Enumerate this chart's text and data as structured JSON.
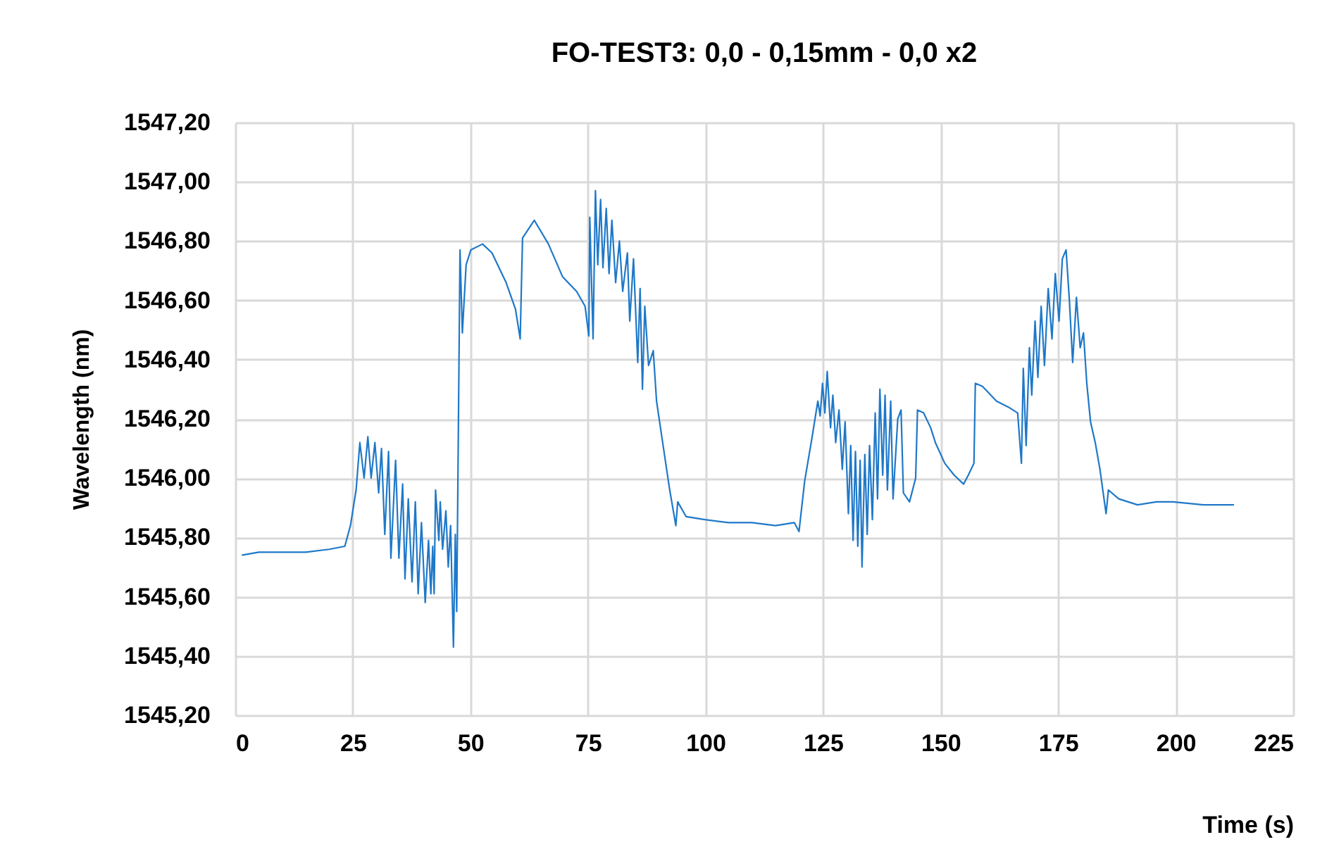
{
  "chart_data": {
    "type": "line",
    "title": "FO-TEST3: 0,0 - 0,15mm - 0,0  x2",
    "xlabel": "Time (s)",
    "ylabel": "Wavelength (nm)",
    "xlim": [
      0,
      225
    ],
    "xticks": [
      0,
      25,
      50,
      75,
      100,
      125,
      150,
      175,
      200,
      225
    ],
    "ylim": [
      1545.2,
      1547.2
    ],
    "yticks": [
      {
        "value": 1545.2,
        "label": "1545,20"
      },
      {
        "value": 1545.4,
        "label": "1545,40"
      },
      {
        "value": 1545.6,
        "label": "1545,60"
      },
      {
        "value": 1545.8,
        "label": "1545,80"
      },
      {
        "value": 1546.0,
        "label": "1546,00"
      },
      {
        "value": 1546.2,
        "label": "1546,20"
      },
      {
        "value": 1546.4,
        "label": "1546,40"
      },
      {
        "value": 1546.6,
        "label": "1546,60"
      },
      {
        "value": 1546.8,
        "label": "1546,80"
      },
      {
        "value": 1547.0,
        "label": "1547,00"
      },
      {
        "value": 1547.2,
        "label": "1547,20"
      }
    ],
    "grid": true,
    "series": [
      {
        "color": "#1f78c8",
        "x": [
          1.4,
          5,
          10,
          15,
          20,
          23.3,
          24.5,
          25.7,
          26.5,
          27.4,
          28.2,
          28.9,
          29.7,
          30.5,
          31.1,
          31.8,
          32.6,
          33.1,
          34.1,
          34.8,
          35.6,
          36.1,
          36.8,
          37.6,
          38.3,
          38.9,
          39.6,
          40.4,
          41.1,
          41.6,
          42.0,
          42.3,
          42.6,
          43.3,
          43.6,
          44.1,
          44.8,
          45.3,
          45.8,
          46.4,
          46.8,
          47.1,
          47.8,
          48.3,
          49.1,
          50.1,
          52.6,
          54.6,
          57.6,
          59.6,
          60.6,
          61.1,
          63.6,
          66.6,
          69.6,
          72.6,
          74.4,
          75.2,
          75.4,
          76.1,
          76.6,
          77.1,
          77.7,
          78.2,
          78.9,
          79.5,
          80.1,
          80.9,
          81.7,
          82.4,
          83.4,
          83.9,
          84.7,
          85.6,
          86.1,
          86.6,
          87.1,
          87.9,
          88.9,
          89.6,
          90.9,
          92.4,
          93.7,
          94.1,
          95.9,
          99.9,
          104.9,
          109.9,
          114.9,
          118.9,
          119.9,
          121.1,
          122.7,
          123.9,
          124.4,
          124.9,
          125.4,
          125.9,
          126.6,
          127.1,
          127.7,
          128.4,
          129.1,
          129.7,
          130.4,
          130.9,
          131.4,
          131.9,
          132.4,
          132.9,
          133.3,
          133.9,
          134.4,
          134.9,
          135.5,
          136.1,
          136.6,
          137.1,
          137.7,
          138.2,
          138.7,
          139.4,
          139.9,
          140.9,
          141.6,
          142.1,
          143.4,
          144.7,
          145.1,
          146.4,
          147.9,
          148.9,
          150.9,
          152.9,
          154.9,
          155.9,
          157.1,
          157.4,
          158.9,
          161.9,
          164.4,
          166.4,
          167.2,
          167.6,
          168.2,
          168.9,
          169.4,
          170.1,
          170.7,
          171.4,
          172.1,
          172.9,
          173.7,
          174.4,
          175.2,
          175.9,
          176.7,
          177.4,
          178.1,
          178.9,
          179.7,
          180.4,
          181.1,
          181.9,
          182.9,
          183.9,
          185.2,
          185.7,
          187.9,
          191.9,
          195.9,
          199.4,
          205.9,
          212.4
        ],
        "values": [
          1545.74,
          1545.75,
          1545.75,
          1545.75,
          1545.76,
          1545.77,
          1545.84,
          1545.96,
          1546.12,
          1546.0,
          1546.14,
          1546.0,
          1546.12,
          1545.95,
          1546.1,
          1545.81,
          1546.09,
          1545.73,
          1546.06,
          1545.73,
          1545.98,
          1545.66,
          1545.93,
          1545.65,
          1545.92,
          1545.61,
          1545.85,
          1545.58,
          1545.79,
          1545.61,
          1545.77,
          1545.61,
          1545.96,
          1545.79,
          1545.92,
          1545.76,
          1545.89,
          1545.7,
          1545.84,
          1545.43,
          1545.81,
          1545.55,
          1546.77,
          1546.49,
          1546.72,
          1546.77,
          1546.79,
          1546.76,
          1546.66,
          1546.57,
          1546.47,
          1546.81,
          1546.87,
          1546.79,
          1546.68,
          1546.63,
          1546.58,
          1546.48,
          1546.88,
          1546.47,
          1546.97,
          1546.72,
          1546.94,
          1546.71,
          1546.91,
          1546.69,
          1546.87,
          1546.66,
          1546.8,
          1546.63,
          1546.76,
          1546.53,
          1546.74,
          1546.39,
          1546.64,
          1546.3,
          1546.58,
          1546.38,
          1546.43,
          1546.26,
          1546.12,
          1545.96,
          1545.84,
          1545.92,
          1545.87,
          1545.86,
          1545.85,
          1545.85,
          1545.84,
          1545.85,
          1545.82,
          1545.99,
          1546.14,
          1546.26,
          1546.21,
          1546.32,
          1546.22,
          1546.36,
          1546.17,
          1546.28,
          1546.12,
          1546.23,
          1546.03,
          1546.19,
          1545.88,
          1546.11,
          1545.79,
          1546.09,
          1545.77,
          1546.06,
          1545.7,
          1546.08,
          1545.81,
          1546.11,
          1545.86,
          1546.22,
          1545.93,
          1546.3,
          1546.01,
          1546.28,
          1545.96,
          1546.26,
          1545.93,
          1546.2,
          1546.23,
          1545.95,
          1545.92,
          1546.0,
          1546.23,
          1546.22,
          1546.17,
          1546.12,
          1546.05,
          1546.01,
          1545.98,
          1546.01,
          1546.05,
          1546.32,
          1546.31,
          1546.26,
          1546.24,
          1546.22,
          1546.05,
          1546.37,
          1546.11,
          1546.44,
          1546.28,
          1546.53,
          1546.34,
          1546.58,
          1546.38,
          1546.64,
          1546.47,
          1546.69,
          1546.53,
          1546.74,
          1546.77,
          1546.6,
          1546.39,
          1546.61,
          1546.44,
          1546.49,
          1546.32,
          1546.19,
          1546.12,
          1546.03,
          1545.88,
          1545.96,
          1545.93,
          1545.91,
          1545.92,
          1545.92,
          1545.91,
          1545.91
        ]
      }
    ]
  }
}
